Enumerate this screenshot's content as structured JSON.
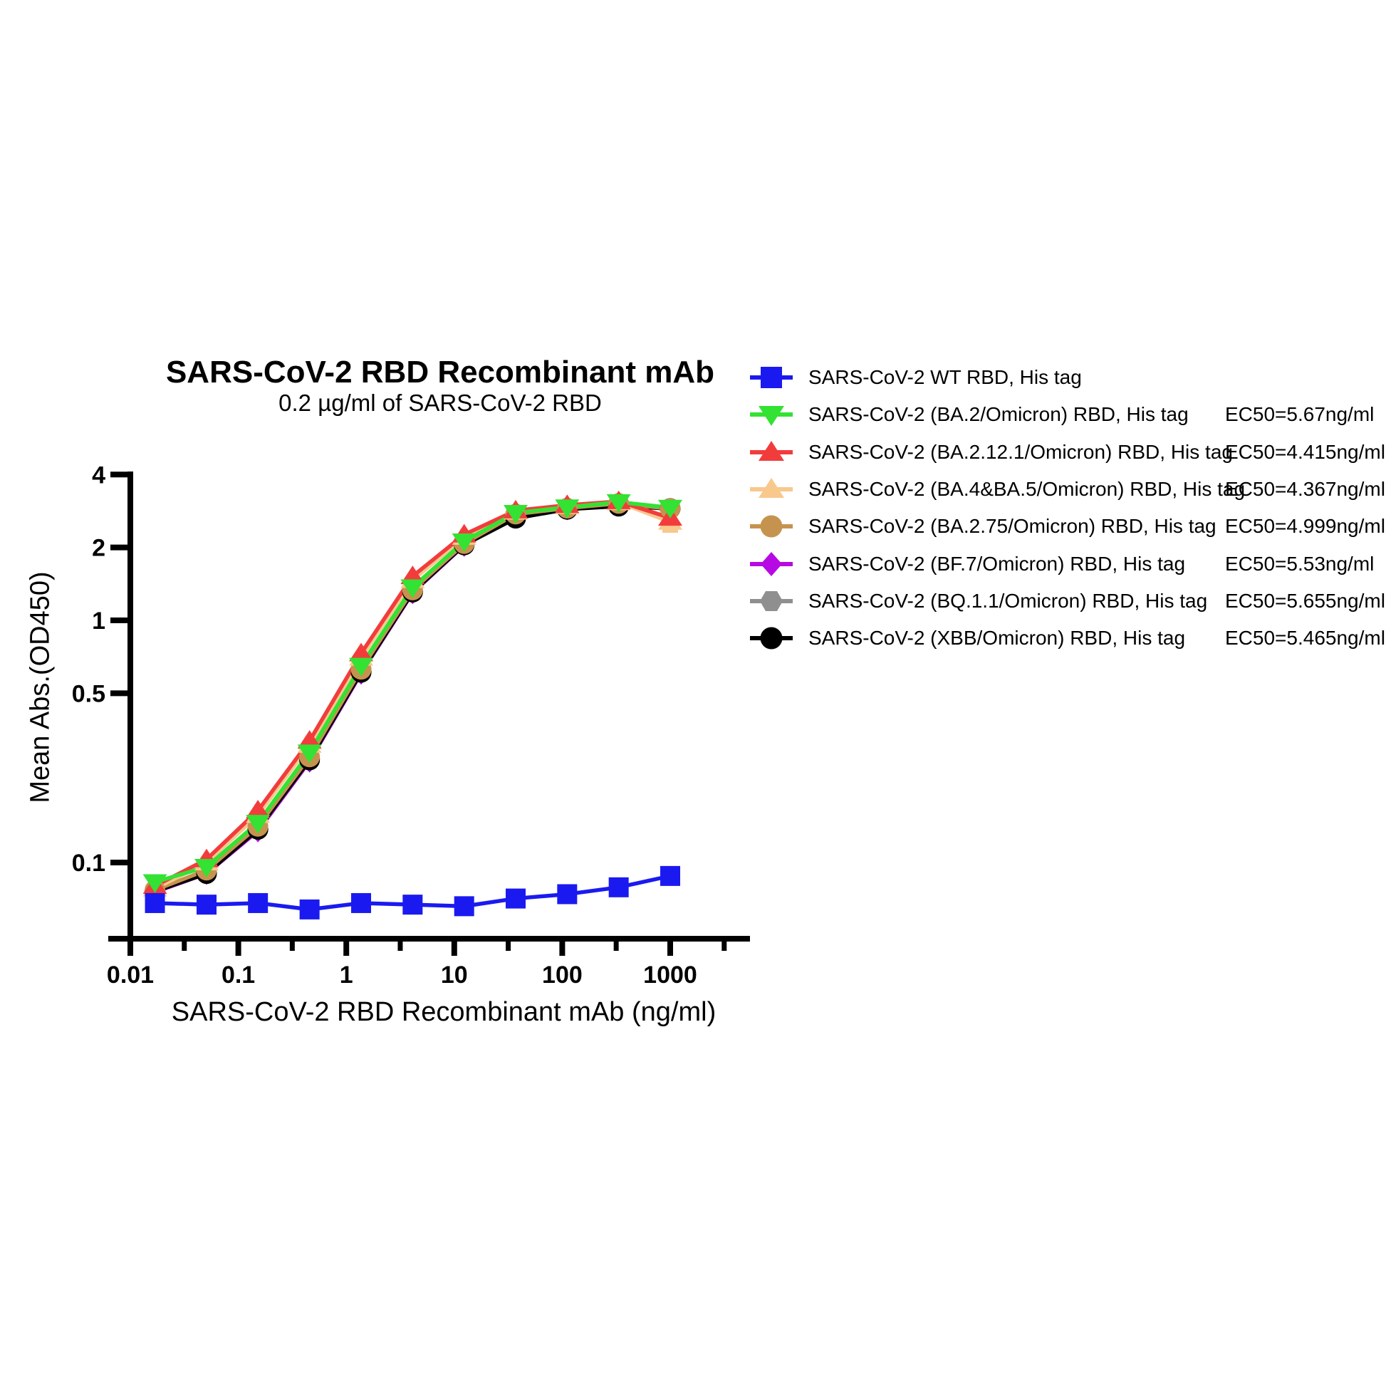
{
  "chart_data": {
    "type": "line",
    "title": "SARS-CoV-2 RBD Recombinant mAb",
    "subtitle": "0.2 µg/ml of SARS-CoV-2 RBD",
    "xlabel": "SARS-CoV-2 RBD Recombinant mAb (ng/ml)",
    "ylabel": "Mean Abs.(OD450)",
    "x_scale": "log",
    "y_scale": "log",
    "x_axis": {
      "major_ticks": [
        0.01,
        0.1,
        1,
        10,
        100,
        1000
      ],
      "major_tick_labels": [
        "0.01",
        "0.1",
        "1",
        "10",
        "100",
        "1000"
      ],
      "minor_ticks": [
        0.0316,
        0.316,
        3.16,
        31.6,
        316,
        3162
      ],
      "range": [
        0.01,
        5000
      ]
    },
    "y_axis": {
      "ticks": [
        4,
        2,
        1,
        0.5,
        0.1
      ],
      "tick_labels": [
        "4",
        "2",
        "1",
        "0.5",
        "0.1"
      ],
      "range": [
        0.048,
        4
      ]
    },
    "x": [
      0.0169,
      0.0508,
      0.152,
      0.457,
      1.372,
      4.115,
      12.35,
      37.04,
      111.1,
      333.3,
      1000
    ],
    "series": [
      {
        "name": "SARS-CoV-2 WT RBD, His tag",
        "ec50": "",
        "marker": "square",
        "color": "#1a1af0",
        "values": [
          0.068,
          0.067,
          0.068,
          0.064,
          0.068,
          0.067,
          0.066,
          0.071,
          0.074,
          0.079,
          0.088
        ]
      },
      {
        "name": "SARS-CoV-2 (BA.2/Omicron) RBD, His tag",
        "ec50": "EC50=5.67ng/ml",
        "marker": "triangle-down",
        "color": "#33e233",
        "values": [
          0.083,
          0.096,
          0.146,
          0.285,
          0.65,
          1.37,
          2.12,
          2.78,
          2.93,
          3.08,
          2.92
        ]
      },
      {
        "name": "SARS-CoV-2 (BA.2.12.1/Omicron) RBD, His tag",
        "ec50": "EC50=4.415ng/ml",
        "marker": "triangle-up",
        "color": "#f23c3c",
        "values": [
          0.08,
          0.103,
          0.164,
          0.318,
          0.73,
          1.52,
          2.26,
          2.84,
          2.99,
          3.1,
          2.65
        ]
      },
      {
        "name": "SARS-CoV-2 (BA.4&BA.5/Omicron) RBD, His tag",
        "ec50": "EC50=4.367ng/ml",
        "marker": "triangle-up",
        "color": "#f8c88d",
        "values": [
          0.078,
          0.1,
          0.157,
          0.306,
          0.7,
          1.465,
          2.21,
          2.81,
          2.96,
          3.07,
          2.55
        ]
      },
      {
        "name": "SARS-CoV-2 (BA.2.75/Omicron) RBD, His tag",
        "ec50": "EC50=4.999ng/ml",
        "marker": "circle",
        "color": "#c6934f",
        "values": [
          0.077,
          0.093,
          0.141,
          0.273,
          0.628,
          1.335,
          2.075,
          2.745,
          2.905,
          3.04,
          2.89
        ]
      },
      {
        "name": "SARS-CoV-2 (BF.7/Omicron) RBD, His tag",
        "ec50": "EC50=5.53ng/ml",
        "marker": "diamond",
        "color": "#b709e3",
        "values": [
          0.0755,
          0.09,
          0.135,
          0.262,
          0.605,
          1.3,
          2.04,
          2.72,
          2.885,
          3.015,
          2.875
        ]
      },
      {
        "name": "SARS-CoV-2 (BQ.1.1/Omicron) RBD, His tag",
        "ec50": "EC50=5.655ng/ml",
        "marker": "hexagon",
        "color": "#8f8f8f",
        "values": [
          0.0765,
          0.091,
          0.138,
          0.268,
          0.616,
          1.316,
          2.055,
          2.73,
          2.895,
          3.025,
          2.88
        ]
      },
      {
        "name": "SARS-CoV-2 (XBB/Omicron) RBD, His tag",
        "ec50": "EC50=5.465ng/ml",
        "marker": "circle",
        "color": "#000000",
        "values": [
          0.076,
          0.09,
          0.137,
          0.265,
          0.61,
          1.308,
          2.048,
          2.64,
          2.875,
          2.96,
          2.895
        ]
      }
    ],
    "error_bars": [
      {
        "series_index": 2,
        "point_index": 10,
        "low": 2.42
      },
      {
        "series_index": 3,
        "point_index": 10,
        "low": 2.34
      }
    ],
    "legend_position": "right"
  }
}
